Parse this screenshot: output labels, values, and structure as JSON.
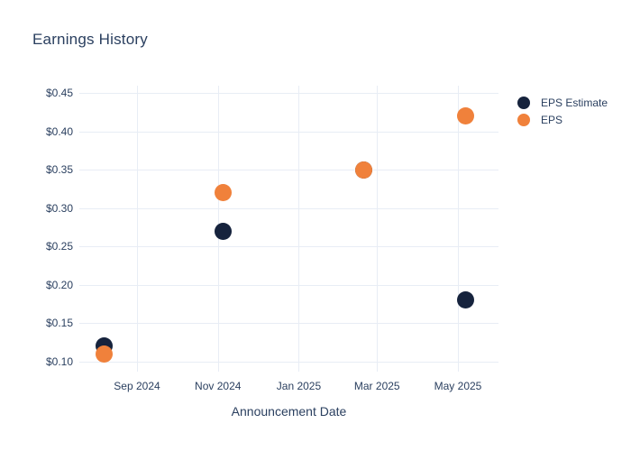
{
  "title": "Earnings History",
  "colors": {
    "background": "#ffffff",
    "text": "#2a3f5f",
    "grid": "#e8edf5",
    "eps_estimate": "#16233d",
    "eps": "#f0813b"
  },
  "legend": {
    "items": [
      {
        "label": "EPS Estimate",
        "color": "#16233d"
      },
      {
        "label": "EPS",
        "color": "#f0813b"
      }
    ]
  },
  "x_axis": {
    "title": "Announcement Date",
    "tick_labels": [
      "Sep 2024",
      "Nov 2024",
      "Jan 2025",
      "Mar 2025",
      "May 2025"
    ]
  },
  "y_axis": {
    "tick_labels": [
      "$0.45",
      "$0.40",
      "$0.35",
      "$0.30",
      "$0.25",
      "$0.20",
      "$0.15",
      "$0.10"
    ],
    "tick_values": [
      0.45,
      0.4,
      0.35,
      0.3,
      0.25,
      0.2,
      0.15,
      0.1
    ],
    "range": [
      0.1,
      0.45
    ]
  },
  "chart_data": {
    "type": "scatter",
    "title": "Earnings History",
    "xlabel": "Announcement Date",
    "ylabel": "",
    "x": [
      "2024-08-07",
      "2024-11-05",
      "2025-02-19",
      "2025-05-07"
    ],
    "x_tick_labels": [
      "Sep 2024",
      "Nov 2024",
      "Jan 2025",
      "Mar 2025",
      "May 2025"
    ],
    "series": [
      {
        "name": "EPS Estimate",
        "color": "#16233d",
        "values": [
          0.12,
          0.27,
          0.35,
          0.18
        ]
      },
      {
        "name": "EPS",
        "color": "#f0813b",
        "values": [
          0.11,
          0.32,
          0.35,
          0.42
        ]
      }
    ],
    "ylim": [
      0.1,
      0.45
    ],
    "grid": true,
    "legend_position": "right",
    "marker_size_px": 19
  }
}
